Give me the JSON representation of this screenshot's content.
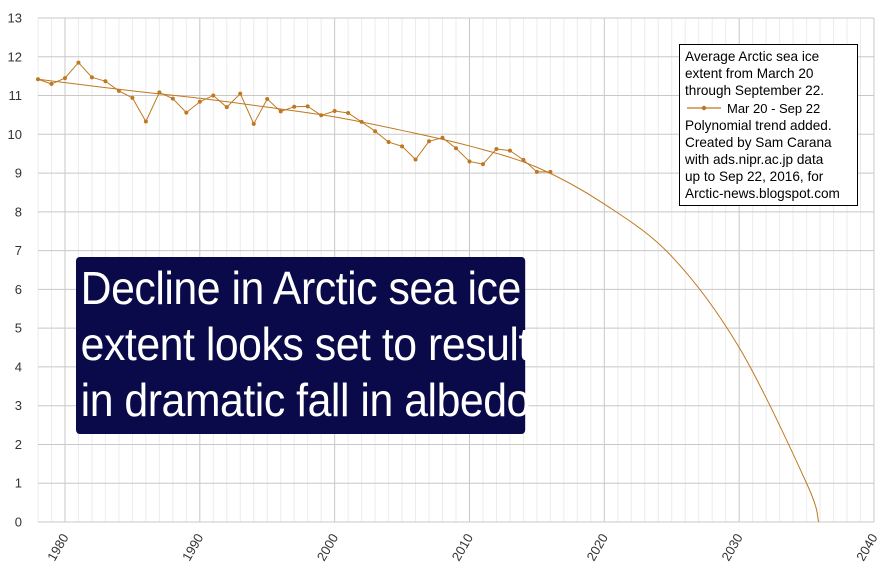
{
  "chart_data": {
    "type": "line",
    "title": "",
    "xlabel": "",
    "ylabel": "",
    "xlim": [
      1978,
      2040
    ],
    "ylim": [
      0,
      13
    ],
    "x_ticks": [
      "1980",
      "1990",
      "2000",
      "2010",
      "2020",
      "2030",
      "2040"
    ],
    "y_ticks": [
      "0",
      "1",
      "2",
      "3",
      "4",
      "5",
      "6",
      "7",
      "8",
      "9",
      "10",
      "11",
      "12",
      "13"
    ],
    "grid": true,
    "series": [
      {
        "name": "Mar 20 - Sep 22",
        "color": "#c07820",
        "marker": "dot",
        "x": [
          1978,
          1979,
          1980,
          1981,
          1982,
          1983,
          1984,
          1985,
          1986,
          1987,
          1988,
          1989,
          1990,
          1991,
          1992,
          1993,
          1994,
          1995,
          1996,
          1997,
          1998,
          1999,
          2000,
          2001,
          2002,
          2003,
          2004,
          2005,
          2006,
          2007,
          2008,
          2009,
          2010,
          2011,
          2012,
          2013,
          2014,
          2015,
          2016
        ],
        "values": [
          11.42,
          11.3,
          11.45,
          11.85,
          11.47,
          11.37,
          11.12,
          10.94,
          10.33,
          11.08,
          10.92,
          10.56,
          10.84,
          11.0,
          10.7,
          11.05,
          10.27,
          10.91,
          10.59,
          10.71,
          10.72,
          10.49,
          10.6,
          10.55,
          10.32,
          10.08,
          9.8,
          9.69,
          9.35,
          9.82,
          9.91,
          9.64,
          9.3,
          9.23,
          9.62,
          9.58,
          9.34,
          9.03,
          9.03
        ]
      },
      {
        "trend": "polynomial",
        "color": "#c07820",
        "x": [
          1978,
          1985,
          1990,
          1995,
          2000,
          2005,
          2010,
          2015,
          2020,
          2025,
          2030,
          2035,
          2035.9
        ],
        "values": [
          11.42,
          11.12,
          10.93,
          10.7,
          10.45,
          10.1,
          9.7,
          9.15,
          8.2,
          6.85,
          4.5,
          1.0,
          0
        ]
      }
    ]
  },
  "legend": {
    "title_lines": [
      "Average Arctic sea ice",
      "extent from March 20",
      "through September 22."
    ],
    "series_label": "Mar 20 - Sep 22",
    "note_lines": [
      "Polynomial trend added.",
      "Created by Sam Carana",
      "with ads.nipr.ac.jp data",
      "up to Sep 22, 2016, for",
      "Arctic-news.blogspot.com"
    ]
  },
  "banner": {
    "lines": [
      "Decline in Arctic sea ice",
      "extent looks set to result",
      "in dramatic fall in albedo"
    ],
    "background": "#0a0a4a",
    "color": "#ffffff"
  }
}
